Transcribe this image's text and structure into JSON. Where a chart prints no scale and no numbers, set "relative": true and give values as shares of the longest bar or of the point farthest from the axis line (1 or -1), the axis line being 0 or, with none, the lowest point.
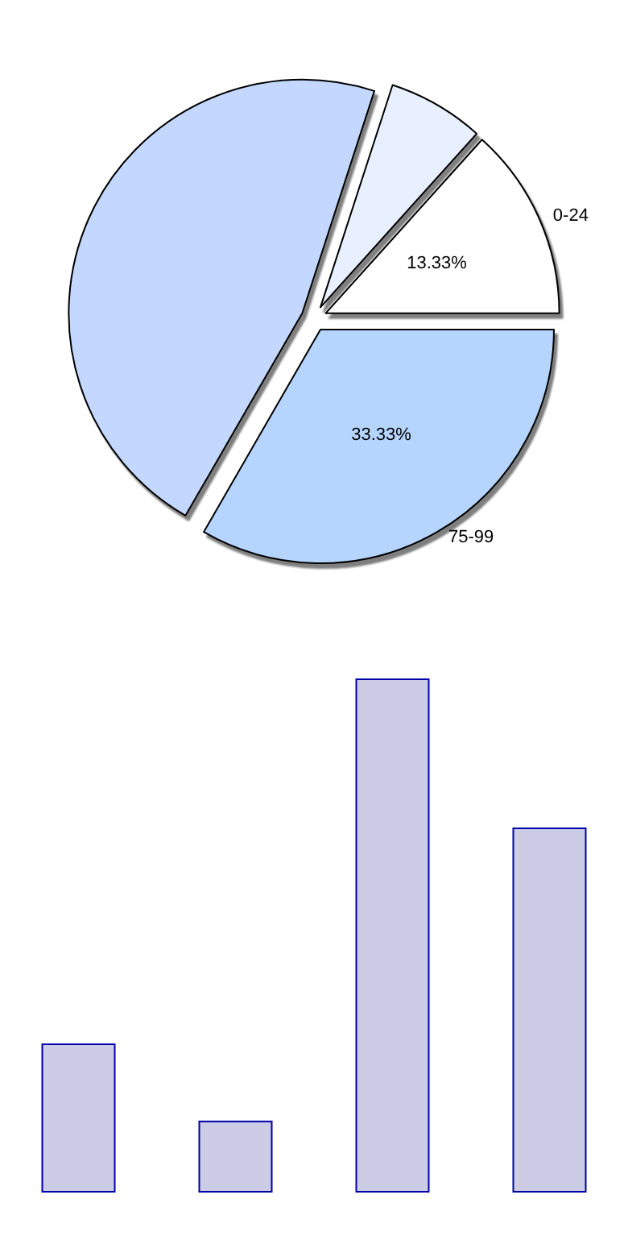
{
  "chart_data": [
    {
      "type": "pie",
      "categories": [
        "0-24",
        null,
        null,
        "75-99"
      ],
      "values": [
        13.33,
        6.67,
        46.67,
        33.33
      ],
      "colors": [
        "#ffffff",
        "#e8f0ff",
        "#c4d8ff",
        "#b5d5ff"
      ],
      "value_labels": [
        "13.33%",
        null,
        null,
        "33.33%"
      ]
    },
    {
      "type": "bar",
      "relative": true,
      "categories": [
        null,
        null,
        null,
        null
      ],
      "values": [
        0.29,
        0.14,
        1,
        0.71
      ],
      "color": "#ccccE6"
    }
  ]
}
